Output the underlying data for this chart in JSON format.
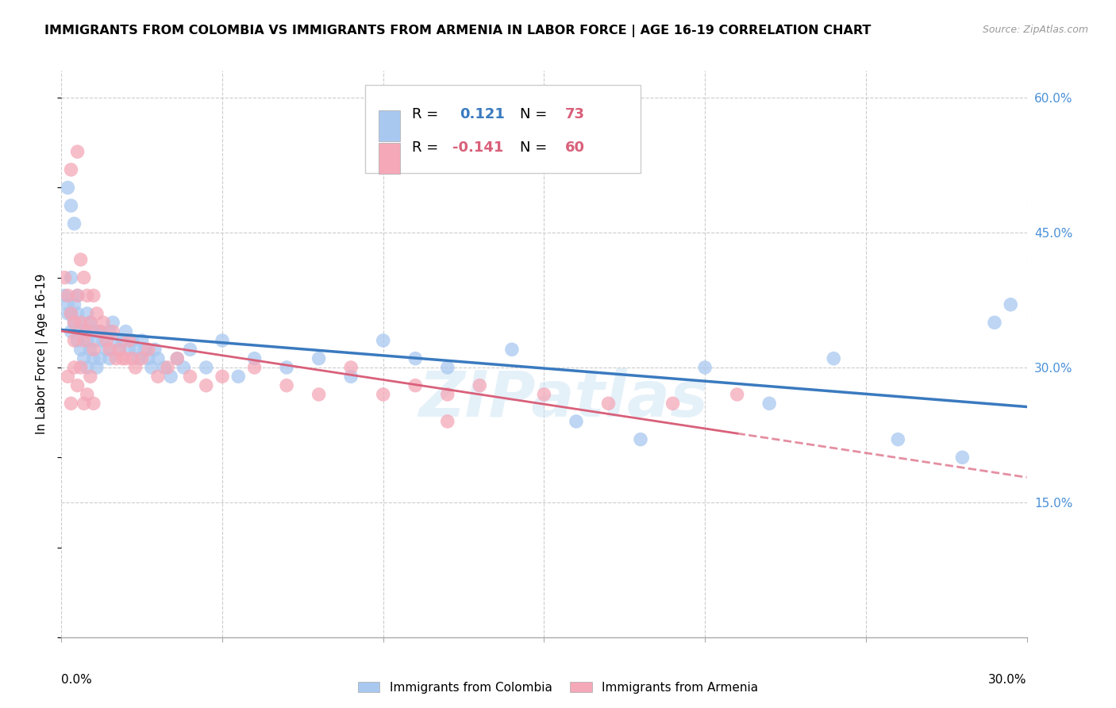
{
  "title": "IMMIGRANTS FROM COLOMBIA VS IMMIGRANTS FROM ARMENIA IN LABOR FORCE | AGE 16-19 CORRELATION CHART",
  "source": "Source: ZipAtlas.com",
  "ylabel": "In Labor Force | Age 16-19",
  "right_yticks": [
    "60.0%",
    "45.0%",
    "30.0%",
    "15.0%"
  ],
  "right_ytick_vals": [
    0.6,
    0.45,
    0.3,
    0.15
  ],
  "xmin": 0.0,
  "xmax": 0.3,
  "ymin": 0.0,
  "ymax": 0.63,
  "colombia_color": "#a8c8f0",
  "armenia_color": "#f4a8b8",
  "colombia_R": "0.121",
  "colombia_N": "73",
  "armenia_R": "-0.141",
  "armenia_N": "60",
  "trend_colombia_color": "#3a7abf",
  "trend_armenia_color": "#d9607a",
  "watermark": "ZIPatlas",
  "legend_R_color": "#3a7abf",
  "legend_N_color": "#d9607a",
  "colombia_scatter_x": [
    0.001,
    0.002,
    0.002,
    0.003,
    0.003,
    0.003,
    0.004,
    0.004,
    0.005,
    0.005,
    0.005,
    0.006,
    0.006,
    0.007,
    0.007,
    0.008,
    0.008,
    0.008,
    0.009,
    0.009,
    0.01,
    0.01,
    0.011,
    0.011,
    0.012,
    0.012,
    0.013,
    0.014,
    0.015,
    0.015,
    0.016,
    0.017,
    0.018,
    0.019,
    0.02,
    0.021,
    0.022,
    0.023,
    0.024,
    0.025,
    0.026,
    0.027,
    0.028,
    0.029,
    0.03,
    0.032,
    0.034,
    0.036,
    0.038,
    0.04,
    0.045,
    0.05,
    0.055,
    0.06,
    0.07,
    0.08,
    0.09,
    0.1,
    0.11,
    0.12,
    0.14,
    0.16,
    0.18,
    0.2,
    0.22,
    0.24,
    0.26,
    0.28,
    0.29,
    0.295,
    0.002,
    0.003,
    0.004
  ],
  "colombia_scatter_y": [
    0.38,
    0.37,
    0.36,
    0.4,
    0.36,
    0.34,
    0.37,
    0.35,
    0.38,
    0.36,
    0.33,
    0.35,
    0.32,
    0.34,
    0.31,
    0.36,
    0.33,
    0.3,
    0.35,
    0.32,
    0.34,
    0.31,
    0.33,
    0.3,
    0.34,
    0.31,
    0.33,
    0.32,
    0.34,
    0.31,
    0.35,
    0.33,
    0.32,
    0.33,
    0.34,
    0.32,
    0.33,
    0.32,
    0.31,
    0.33,
    0.32,
    0.31,
    0.3,
    0.32,
    0.31,
    0.3,
    0.29,
    0.31,
    0.3,
    0.32,
    0.3,
    0.33,
    0.29,
    0.31,
    0.3,
    0.31,
    0.29,
    0.33,
    0.31,
    0.3,
    0.32,
    0.24,
    0.22,
    0.3,
    0.26,
    0.31,
    0.22,
    0.2,
    0.35,
    0.37,
    0.5,
    0.48,
    0.46
  ],
  "armenia_scatter_x": [
    0.001,
    0.002,
    0.003,
    0.003,
    0.004,
    0.004,
    0.005,
    0.005,
    0.006,
    0.006,
    0.007,
    0.007,
    0.008,
    0.008,
    0.009,
    0.01,
    0.01,
    0.011,
    0.012,
    0.013,
    0.014,
    0.015,
    0.016,
    0.017,
    0.018,
    0.019,
    0.02,
    0.021,
    0.022,
    0.023,
    0.025,
    0.027,
    0.03,
    0.033,
    0.036,
    0.04,
    0.045,
    0.05,
    0.06,
    0.07,
    0.08,
    0.09,
    0.1,
    0.11,
    0.12,
    0.13,
    0.15,
    0.17,
    0.19,
    0.21,
    0.004,
    0.005,
    0.006,
    0.007,
    0.002,
    0.003,
    0.008,
    0.009,
    0.01,
    0.12
  ],
  "armenia_scatter_y": [
    0.4,
    0.38,
    0.52,
    0.36,
    0.35,
    0.33,
    0.54,
    0.38,
    0.42,
    0.35,
    0.4,
    0.33,
    0.38,
    0.34,
    0.35,
    0.38,
    0.32,
    0.36,
    0.34,
    0.35,
    0.33,
    0.32,
    0.34,
    0.31,
    0.32,
    0.31,
    0.31,
    0.33,
    0.31,
    0.3,
    0.31,
    0.32,
    0.29,
    0.3,
    0.31,
    0.29,
    0.28,
    0.29,
    0.3,
    0.28,
    0.27,
    0.3,
    0.27,
    0.28,
    0.27,
    0.28,
    0.27,
    0.26,
    0.26,
    0.27,
    0.3,
    0.28,
    0.3,
    0.26,
    0.29,
    0.26,
    0.27,
    0.29,
    0.26,
    0.24
  ]
}
